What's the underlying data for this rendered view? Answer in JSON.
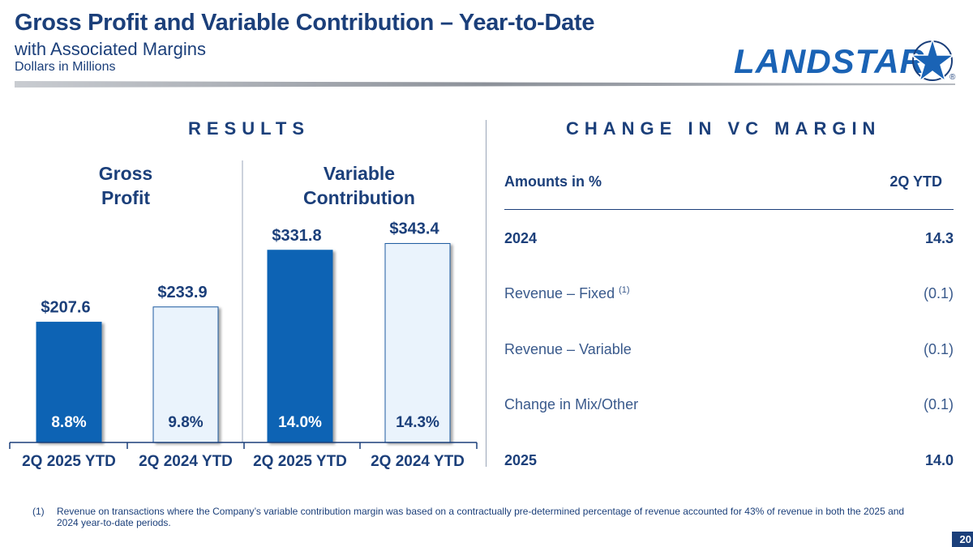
{
  "header": {
    "title": "Gross Profit and Variable Contribution – Year-to-Date",
    "subtitle": "with Associated Margins",
    "units": "Dollars in Millions",
    "logo_text": "LANDSTAR",
    "logo_mark": "®"
  },
  "results": {
    "section_title": "RESULTS",
    "groups": [
      {
        "label_line1": "Gross",
        "label_line2": "Profit"
      },
      {
        "label_line1": "Variable",
        "label_line2": "Contribution"
      }
    ]
  },
  "chart_data": {
    "type": "bar",
    "categories": [
      "2Q 2025 YTD",
      "2Q 2024 YTD",
      "2Q 2025 YTD",
      "2Q 2024 YTD"
    ],
    "values": [
      207.6,
      233.9,
      331.8,
      343.4
    ],
    "value_labels": [
      "$207.6",
      "$233.9",
      "$331.8",
      "$343.4"
    ],
    "margin_labels": [
      "8.8%",
      "9.8%",
      "14.0%",
      "14.3%"
    ],
    "ylim": [
      0,
      400
    ],
    "colors": [
      "#0d64b4",
      "#eaf3fc",
      "#0d64b4",
      "#eaf3fc"
    ],
    "grid": false
  },
  "change": {
    "section_title": "CHANGE IN VC MARGIN",
    "header_label": "Amounts in %",
    "header_value": "2Q YTD",
    "rows": [
      {
        "label": "2024",
        "value": "14.3",
        "bold": true,
        "sup": ""
      },
      {
        "label": "Revenue – Fixed",
        "value": "(0.1)",
        "bold": false,
        "sup": "(1)"
      },
      {
        "label": "Revenue – Variable",
        "value": "(0.1)",
        "bold": false,
        "sup": ""
      },
      {
        "label": "Change in Mix/Other",
        "value": "(0.1)",
        "bold": false,
        "sup": ""
      },
      {
        "label": "2025",
        "value": "14.0",
        "bold": true,
        "sup": ""
      }
    ]
  },
  "footnote": {
    "number": "(1)",
    "text": "Revenue on transactions where the Company’s variable contribution margin was based on a contractually pre-determined percentage of revenue accounted for 43% of revenue in both the 2025 and 2024 year-to-date periods."
  },
  "page_number": "20"
}
